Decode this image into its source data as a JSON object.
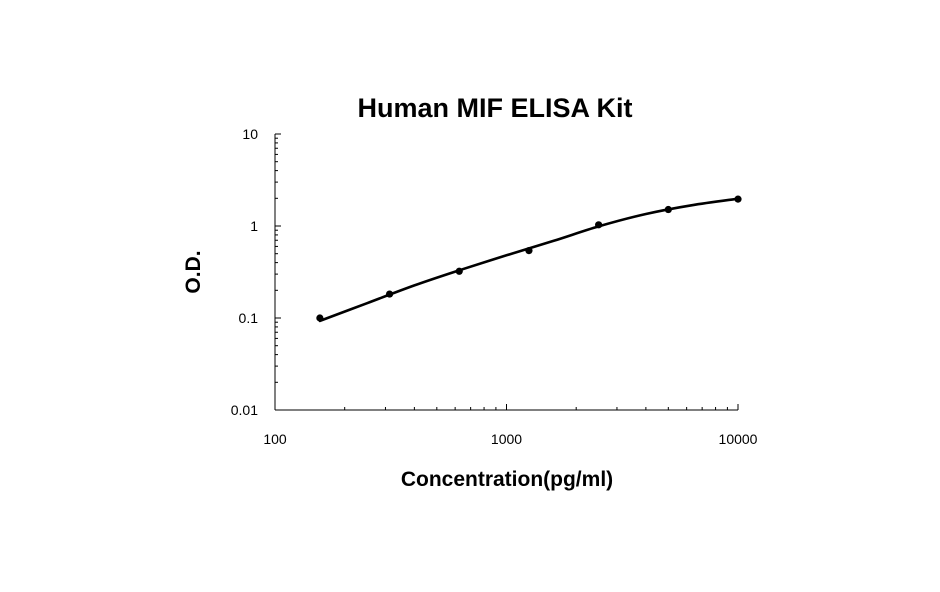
{
  "chart_data": {
    "type": "line",
    "title": "Human MIF ELISA Kit",
    "xlabel": "Concentration(pg/ml)",
    "ylabel": "O.D.",
    "x_scale": "log",
    "y_scale": "log",
    "xlim": [
      100,
      10000
    ],
    "ylim": [
      0.01,
      10
    ],
    "x_ticks": [
      "100",
      "1000",
      "10000"
    ],
    "y_ticks": [
      "10",
      "1",
      "0.1",
      "0.01"
    ],
    "grid": false,
    "legend": "none",
    "series": [
      {
        "points": [
          {
            "x": 156.25,
            "y": 0.1
          },
          {
            "x": 312.5,
            "y": 0.182
          },
          {
            "x": 625,
            "y": 0.322
          },
          {
            "x": 1250,
            "y": 0.54
          },
          {
            "x": 2500,
            "y": 1.03
          },
          {
            "x": 5000,
            "y": 1.51
          },
          {
            "x": 10000,
            "y": 1.96
          }
        ],
        "fit_curve": [
          {
            "x": 156.25,
            "y": 0.093
          },
          {
            "x": 250,
            "y": 0.145
          },
          {
            "x": 400,
            "y": 0.226
          },
          {
            "x": 625,
            "y": 0.33
          },
          {
            "x": 1000,
            "y": 0.48
          },
          {
            "x": 1600,
            "y": 0.69
          },
          {
            "x": 2500,
            "y": 0.99
          },
          {
            "x": 4000,
            "y": 1.35
          },
          {
            "x": 6300,
            "y": 1.68
          },
          {
            "x": 10000,
            "y": 1.98
          }
        ]
      }
    ],
    "colors": {
      "line": "#000000",
      "marker": "#000000",
      "axis": "#000000"
    }
  }
}
